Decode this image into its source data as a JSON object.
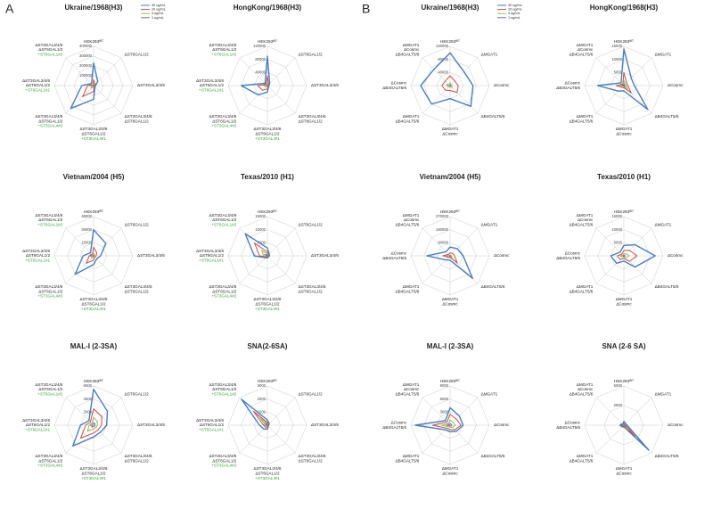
{
  "chart_data": [
    {
      "type": "radar",
      "panel": "A",
      "legend": [
        {
          "name": "40 ug/mL",
          "color": "#4a7ebb"
        },
        {
          "name": "10 ug/mL",
          "color": "#c0504d"
        },
        {
          "name": "4 ug/mL",
          "color": "#9bbb59"
        },
        {
          "name": "1 ug/mL",
          "color": "#8064a2"
        }
      ],
      "categories": [
        [
          "HEK293ᵂᵀ"
        ],
        [
          "ΔST6GAL1/2"
        ],
        [
          "ΔST3GAL3/4/6"
        ],
        [
          "ΔST3GAL3/4/6",
          "ΔST6GAL1/2"
        ],
        [
          "ΔST3GAL3/4/6",
          "ΔST6GAL1/2",
          "+ST3GAL4#1"
        ],
        [
          "ΔST3GAL3/4/6",
          "ΔST6GAL1/2",
          "+ST3GAL4#2"
        ],
        [
          "ΔST3GAL3/4/6",
          "ΔST6GAL1/2",
          "+ST6GAL1#1"
        ],
        [
          "ΔST3GAL3/4/6",
          "ΔST6GAL1/2",
          "+ST6GAL1#2"
        ]
      ],
      "charts": [
        {
          "title": "Ukraine/1968(H3)",
          "ylim": [
            0,
            400000
          ],
          "yticks": [
            0,
            100000,
            200000,
            300000,
            400000
          ],
          "series": [
            {
              "values": [
                230000,
                60000,
                20000,
                20000,
                140000,
                330000,
                120000,
                30000
              ]
            },
            {
              "values": [
                60000,
                20000,
                10000,
                10000,
                60000,
                160000,
                60000,
                10000
              ]
            },
            {
              "values": [
                15000,
                5000,
                3000,
                3000,
                15000,
                40000,
                15000,
                3000
              ]
            },
            {
              "values": [
                3000,
                1000,
                500,
                500,
                3000,
                8000,
                3000,
                500
              ]
            }
          ]
        },
        {
          "title": "HongKong/1968(H3)",
          "ylim": [
            0,
            120000
          ],
          "yticks": [
            0,
            40000,
            80000,
            120000
          ],
          "series": [
            {
              "values": [
                90000,
                10000,
                5000,
                5000,
                20000,
                40000,
                80000,
                10000
              ]
            },
            {
              "values": [
                30000,
                5000,
                3000,
                3000,
                10000,
                20000,
                30000,
                5000
              ]
            },
            {
              "values": [
                8000,
                2000,
                1000,
                1000,
                4000,
                6000,
                10000,
                2000
              ]
            },
            {
              "values": [
                2000,
                500,
                300,
                300,
                1000,
                1500,
                2500,
                500
              ]
            }
          ]
        },
        {
          "title": "Vietnam/2004 (H5)",
          "ylim": [
            0,
            45000
          ],
          "yticks": [
            0,
            15000,
            30000,
            45000
          ],
          "series": [
            {
              "values": [
                30000,
                20000,
                8000,
                5000,
                10000,
                30000,
                12000,
                5000
              ]
            },
            {
              "values": [
                10000,
                5000,
                3000,
                2000,
                5000,
                12000,
                5000,
                2000
              ]
            },
            {
              "values": [
                3000,
                1500,
                1000,
                500,
                1500,
                4000,
                2000,
                500
              ]
            },
            {
              "values": [
                800,
                400,
                300,
                200,
                400,
                1000,
                500,
                200
              ]
            }
          ]
        },
        {
          "title": "Texas/2010 (H1)",
          "ylim": [
            0,
            15000
          ],
          "yticks": [
            0,
            5000,
            10000,
            15000
          ],
          "series": [
            {
              "values": [
                3000,
                1000,
                800,
                500,
                800,
                1000,
                5000,
                12000
              ]
            },
            {
              "values": [
                1500,
                500,
                400,
                300,
                400,
                600,
                3000,
                7000
              ]
            },
            {
              "values": [
                800,
                300,
                200,
                200,
                200,
                300,
                1500,
                3000
              ]
            },
            {
              "values": [
                200,
                100,
                80,
                80,
                80,
                100,
                400,
                800
              ]
            }
          ]
        },
        {
          "title": "MAL-I (2-3SA)",
          "ylim": [
            0,
            6000
          ],
          "yticks": [
            0,
            2000,
            4000,
            6000
          ],
          "series": [
            {
              "values": [
                5500,
                3000,
                2000,
                1500,
                1800,
                4500,
                2000,
                1000
              ]
            },
            {
              "values": [
                2500,
                1800,
                1200,
                1000,
                1200,
                2800,
                1200,
                700
              ]
            },
            {
              "values": [
                1200,
                800,
                600,
                500,
                600,
                1300,
                700,
                400
              ]
            },
            {
              "values": [
                400,
                300,
                200,
                200,
                200,
                400,
                200,
                150
              ]
            }
          ]
        },
        {
          "title": "SNA(2-6SA)",
          "ylim": [
            0,
            3000
          ],
          "yticks": [
            0,
            1000,
            2000,
            3000
          ],
          "series": [
            {
              "values": [
                400,
                200,
                100,
                100,
                300,
                400,
                600,
                2800
              ]
            },
            {
              "values": [
                200,
                100,
                80,
                80,
                150,
                200,
                300,
                1500
              ]
            },
            {
              "values": [
                100,
                60,
                50,
                50,
                80,
                100,
                150,
                800
              ]
            },
            {
              "values": [
                40,
                20,
                20,
                20,
                30,
                40,
                50,
                200
              ]
            }
          ]
        }
      ]
    },
    {
      "type": "radar",
      "panel": "B",
      "legend": [
        {
          "name": "40 ug/mL",
          "color": "#4a7ebb"
        },
        {
          "name": "10 ug/mL",
          "color": "#c0504d"
        },
        {
          "name": "4 ug/mL",
          "color": "#9bbb59"
        },
        {
          "name": "1 ug/mL",
          "color": "#8064a2"
        }
      ],
      "categories": [
        [
          "HEK293ᵂᵀ"
        ],
        [
          "ΔMGAT1"
        ],
        [
          "ΔCosmc"
        ],
        [
          "ΔB4GALT5/6"
        ],
        [
          "ΔMGAT1",
          "ΔCosmc"
        ],
        [
          "ΔMGAT1",
          "ΔB4GALT5/6"
        ],
        [
          "ΔCosmc",
          "ΔB4GALT5/6"
        ],
        [
          "ΔMGAT1",
          "ΔCosmc",
          "ΔB4GALT5/6"
        ]
      ],
      "charts": [
        {
          "title": "Ukraine/1968(H3)",
          "ylim": [
            0,
            120000
          ],
          "yticks": [
            0,
            40000,
            80000,
            120000
          ],
          "series": [
            {
              "values": [
                100000,
                60000,
                70000,
                90000,
                40000,
                80000,
                90000,
                70000
              ]
            },
            {
              "values": [
                30000,
                20000,
                25000,
                30000,
                15000,
                20000,
                25000,
                20000
              ]
            },
            {
              "values": [
                8000,
                5000,
                6000,
                8000,
                4000,
                6000,
                7000,
                5000
              ]
            },
            {
              "values": [
                2000,
                1500,
                1500,
                2000,
                1000,
                1500,
                1800,
                1500
              ]
            }
          ]
        },
        {
          "title": "HongKong/1968(H3)",
          "ylim": [
            0,
            15000
          ],
          "yticks": [
            0,
            5000,
            10000,
            15000
          ],
          "series": [
            {
              "values": [
                14000,
                4000,
                4000,
                13000,
                2000,
                3000,
                10000,
                1500
              ]
            },
            {
              "values": [
                5000,
                1500,
                1500,
                4000,
                800,
                1000,
                3000,
                600
              ]
            },
            {
              "values": [
                2000,
                800,
                800,
                2000,
                400,
                500,
                1500,
                300
              ]
            },
            {
              "values": [
                600,
                300,
                300,
                600,
                150,
                200,
                500,
                100
              ]
            }
          ]
        },
        {
          "title": "Vietnam/2004 (H5)",
          "ylim": [
            0,
            270000
          ],
          "yticks": [
            0,
            90000,
            180000,
            270000
          ],
          "series": [
            {
              "values": [
                60000,
                70000,
                90000,
                220000,
                30000,
                40000,
                160000,
                40000
              ]
            },
            {
              "values": [
                20000,
                25000,
                30000,
                70000,
                10000,
                15000,
                50000,
                15000
              ]
            },
            {
              "values": [
                6000,
                7000,
                9000,
                20000,
                3000,
                4000,
                15000,
                4000
              ]
            },
            {
              "values": [
                1500,
                2000,
                2500,
                5000,
                800,
                1000,
                4000,
                1000
              ]
            }
          ]
        },
        {
          "title": "Texas/2010 (H1)",
          "ylim": [
            0,
            15000
          ],
          "yticks": [
            0,
            5000,
            10000,
            15000
          ],
          "series": [
            {
              "values": [
                4000,
                6000,
                12000,
                6000,
                2000,
                4000,
                5000,
                2000
              ]
            },
            {
              "values": [
                2000,
                3000,
                5000,
                3000,
                1000,
                2000,
                2500,
                1000
              ]
            },
            {
              "values": [
                800,
                1200,
                2000,
                1200,
                400,
                800,
                1000,
                400
              ]
            },
            {
              "values": [
                200,
                300,
                500,
                300,
                100,
                200,
                250,
                100
              ]
            }
          ]
        },
        {
          "title": "MAL-I (2-3SA)",
          "ylim": [
            0,
            9000
          ],
          "yticks": [
            0,
            3000,
            6000,
            9000
          ],
          "series": [
            {
              "values": [
                4000,
                3000,
                3000,
                2000,
                1500,
                1500,
                8000,
                1500
              ]
            },
            {
              "values": [
                2500,
                2000,
                2500,
                1500,
                1000,
                1000,
                4000,
                1000
              ]
            },
            {
              "values": [
                1200,
                1000,
                1200,
                800,
                500,
                500,
                2000,
                500
              ]
            },
            {
              "values": [
                400,
                300,
                400,
                300,
                200,
                200,
                600,
                200
              ]
            }
          ]
        },
        {
          "title": "SNA (2-6 SA)",
          "ylim": [
            0,
            5000
          ],
          "yticks": [
            0,
            2500,
            5000
          ],
          "series": [
            {
              "values": [
                500,
                300,
                400,
                4500,
                200,
                300,
                500,
                200
              ]
            },
            {
              "values": [
                250,
                150,
                200,
                2000,
                100,
                150,
                250,
                100
              ]
            },
            {
              "values": [
                120,
                80,
                100,
                900,
                50,
                80,
                120,
                50
              ]
            },
            {
              "values": [
                40,
                30,
                40,
                300,
                20,
                30,
                40,
                20
              ]
            }
          ]
        }
      ]
    }
  ]
}
